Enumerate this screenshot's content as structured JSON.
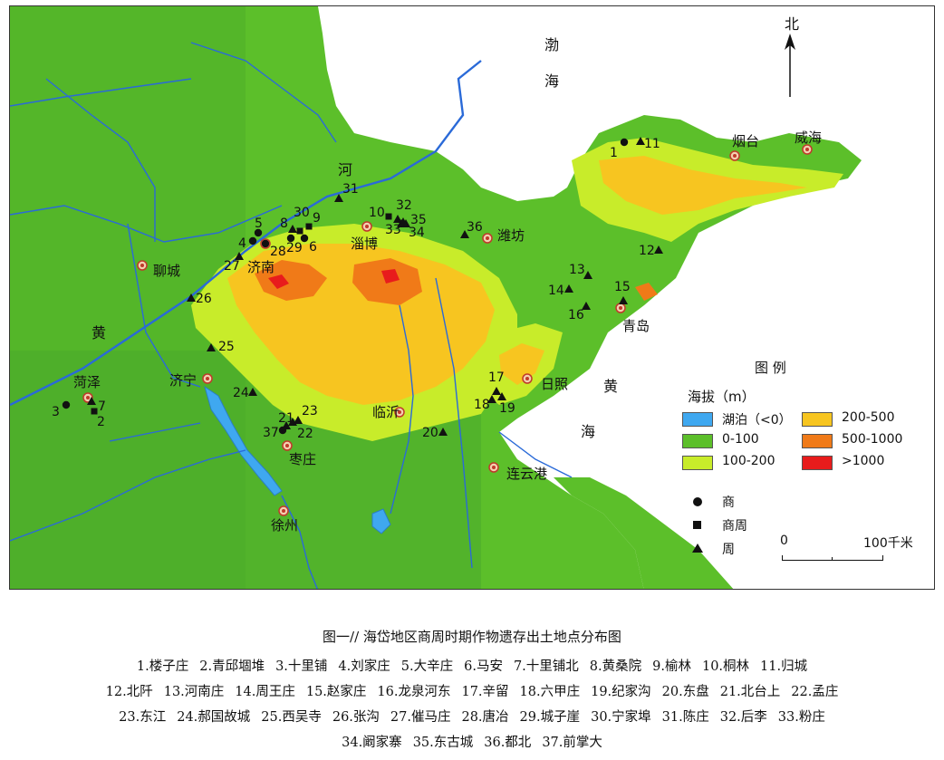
{
  "map": {
    "seas": {
      "bohai_1": "渤",
      "bohai_2": "海",
      "yellow_1": "黄",
      "yellow_2": "海"
    },
    "rivers": {
      "he": "河",
      "huang": "黄"
    },
    "north_arrow": {
      "label": "北",
      "icon": "north-arrow-icon"
    },
    "cities": [
      {
        "key": "yantai",
        "name": "烟台"
      },
      {
        "key": "weihai",
        "name": "威海"
      },
      {
        "key": "zibo",
        "name": "淄博"
      },
      {
        "key": "weifang",
        "name": "潍坊"
      },
      {
        "key": "liaocheng",
        "name": "聊城"
      },
      {
        "key": "jinan",
        "name": "济南"
      },
      {
        "key": "qingdao",
        "name": "青岛"
      },
      {
        "key": "jining",
        "name": "济宁"
      },
      {
        "key": "heze",
        "name": "菏泽"
      },
      {
        "key": "rizhao",
        "name": "日照"
      },
      {
        "key": "linyi",
        "name": "临沂"
      },
      {
        "key": "zaozhuang",
        "name": "枣庄"
      },
      {
        "key": "lianyungang",
        "name": "连云港"
      },
      {
        "key": "xuzhou",
        "name": "徐州"
      }
    ],
    "site_numbers": [
      "1",
      "2",
      "3",
      "4",
      "5",
      "6",
      "7",
      "8",
      "9",
      "10",
      "11",
      "12",
      "13",
      "14",
      "15",
      "16",
      "17",
      "18",
      "19",
      "20",
      "21",
      "22",
      "23",
      "24",
      "25",
      "26",
      "27",
      "28",
      "29",
      "30",
      "31",
      "32",
      "33",
      "34",
      "35",
      "36",
      "37"
    ]
  },
  "legend": {
    "title": "图 例",
    "elevation_title": "海拔（m）",
    "items": [
      {
        "label": "湖泊（<0）",
        "color": "#3fa8f0"
      },
      {
        "label": "0-100",
        "color": "#5cbf2a"
      },
      {
        "label": "100-200",
        "color": "#c8ec2a"
      },
      {
        "label": "200-500",
        "color": "#f7c520"
      },
      {
        "label": "500-1000",
        "color": "#f07a18"
      },
      {
        "label": ">1000",
        "color": "#e81c1c"
      }
    ],
    "symbols": [
      {
        "label": "商",
        "icon": "circle-icon"
      },
      {
        "label": "商周",
        "icon": "square-icon"
      },
      {
        "label": "周",
        "icon": "triangle-icon"
      }
    ],
    "scale": {
      "zero": "0",
      "end": "100千米"
    }
  },
  "caption": {
    "figure_title": "图一// 海岱地区商周时期作物遗存出土地点分布图",
    "sites": [
      [
        "1.楼子庄",
        "2.青邱堌堆",
        "3.十里铺",
        "4.刘家庄",
        "5.大辛庄",
        "6.马安",
        "7.十里铺北",
        "8.黄桑院",
        "9.榆林",
        "10.桐林",
        "11.归城"
      ],
      [
        "12.北阡",
        "13.河南庄",
        "14.周王庄",
        "15.赵家庄",
        "16.龙泉河东",
        "17.辛留",
        "18.六甲庄",
        "19.纪家沟",
        "20.东盘",
        "21.北台上",
        "22.孟庄"
      ],
      [
        "23.东江",
        "24.郝国故城",
        "25.西吴寺",
        "26.张沟",
        "27.催马庄",
        "28.唐冶",
        "29.城子崖",
        "30.宁家埠",
        "31.陈庄",
        "32.后李",
        "33.粉庄"
      ],
      [
        "34.阚家寨",
        "35.东古城",
        "36.都北",
        "37.前掌大"
      ]
    ]
  }
}
